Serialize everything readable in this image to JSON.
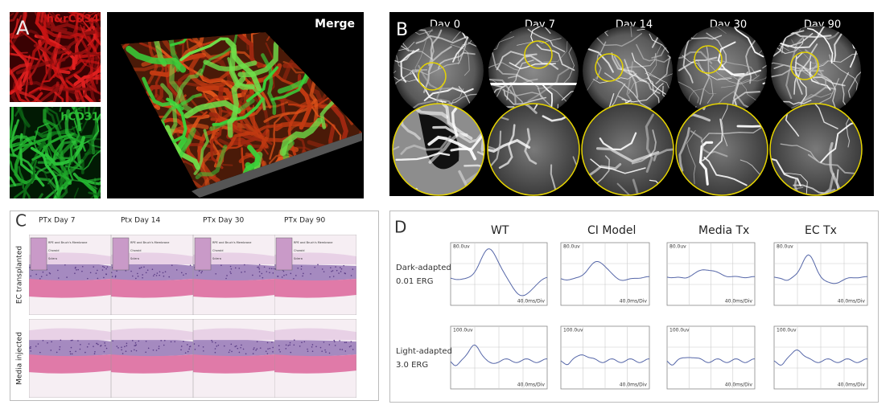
{
  "panels": {
    "A": {
      "label": "A",
      "channels": [
        "h&rCD34",
        "hCD31"
      ],
      "merge": "Merge"
    },
    "B": {
      "label": "B",
      "days": [
        "Day 0",
        "Day 7",
        "Day 14",
        "Day 30",
        "Day 90"
      ]
    },
    "C": {
      "label": "C",
      "columns": [
        "PTx Day 7",
        "Ptx Day 14",
        "PTx Day 30",
        "PTx Day 90"
      ],
      "rows": [
        "EC transplanted",
        "Media injected"
      ],
      "inset_labels": [
        "RPE and Bruch's Membrane",
        "Choroid",
        "Sclera"
      ]
    },
    "D": {
      "label": "D",
      "columns": [
        "WT",
        "CI Model",
        "Media Tx",
        "EC Tx"
      ],
      "rows": [
        {
          "line1": "Dark-adapted",
          "line2": "0.01 ERG",
          "scale": "80.0uv"
        },
        {
          "line1": "Light-adapted",
          "line2": "3.0 ERG",
          "scale": "100.0uv"
        }
      ],
      "time_scale": "40.0ms/Div"
    }
  }
}
